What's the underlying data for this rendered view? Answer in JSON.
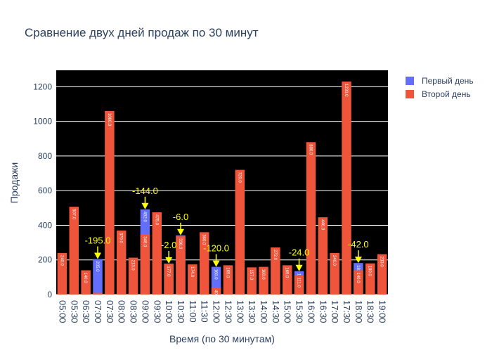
{
  "chart_data": {
    "type": "bar",
    "barmode": "overlay",
    "title": "Сравнение двух дней продаж по 30 минут",
    "x_label": "Время (по 30 минутам)",
    "y_label": "Продажи",
    "categories": [
      "05:00",
      "05:30",
      "06:30",
      "07:00",
      "07:30",
      "08:00",
      "08:30",
      "09:00",
      "09:30",
      "10:00",
      "10:30",
      "11:00",
      "11:30",
      "12:00",
      "12:30",
      "13:00",
      "13:30",
      "14:00",
      "14:30",
      "15:00",
      "15:30",
      "16:00",
      "16:30",
      "17:00",
      "17:30",
      "18:00",
      "18:30",
      "19:00"
    ],
    "series": [
      {
        "name": "Первый день",
        "color": "#636efa",
        "values": [
          null,
          null,
          null,
          205,
          null,
          null,
          null,
          492,
          null,
          179,
          342,
          null,
          null,
          160,
          null,
          null,
          null,
          null,
          null,
          null,
          135,
          null,
          null,
          null,
          null,
          182,
          null,
          null
        ],
        "value_labels": [
          null,
          null,
          null,
          "205.0",
          null,
          null,
          null,
          "492.0",
          null,
          "179.0",
          "342.0",
          null,
          null,
          "160.0",
          null,
          null,
          null,
          null,
          null,
          null,
          "135.0",
          null,
          null,
          null,
          null,
          "182.0",
          null,
          null
        ]
      },
      {
        "name": "Второй день",
        "color": "#ef553b",
        "values": [
          240,
          507,
          140,
          10,
          1060,
          370,
          213,
          348,
          475,
          177,
          336,
          174,
          360,
          40,
          169,
          720,
          157,
          160,
          272,
          169,
          111,
          880,
          446,
          240,
          1230,
          140,
          180,
          233
        ],
        "value_labels": [
          "240.0",
          "507.0",
          "140.0",
          "10.0",
          "1060.0",
          "370.0",
          "213.0",
          "348.0",
          "475.0",
          "177.0",
          "336.0",
          "174.0",
          "360.0",
          "40.0",
          "169.0",
          "720.0",
          "157.0",
          "160.0",
          "272.0",
          "169.0",
          "111.0",
          "880.0",
          "446.0",
          "240.0",
          "1230.0",
          "140.0",
          "180.0",
          "233.0"
        ]
      }
    ],
    "annotations": [
      {
        "x": "07:00",
        "text": "-195.0"
      },
      {
        "x": "09:00",
        "text": "-144.0"
      },
      {
        "x": "10:00",
        "text": "-2.0"
      },
      {
        "x": "10:30",
        "text": "-6.0"
      },
      {
        "x": "12:00",
        "text": "-120.0"
      },
      {
        "x": "15:30",
        "text": "-24.0"
      },
      {
        "x": "18:00",
        "text": "-42.0"
      }
    ],
    "ylim": [
      0,
      1295
    ],
    "yticks": [
      0,
      200,
      400,
      600,
      800,
      1000,
      1200
    ],
    "grid": true,
    "legend": "top-right",
    "plot_background": "#000000",
    "annotation_color": "#ffff00"
  }
}
